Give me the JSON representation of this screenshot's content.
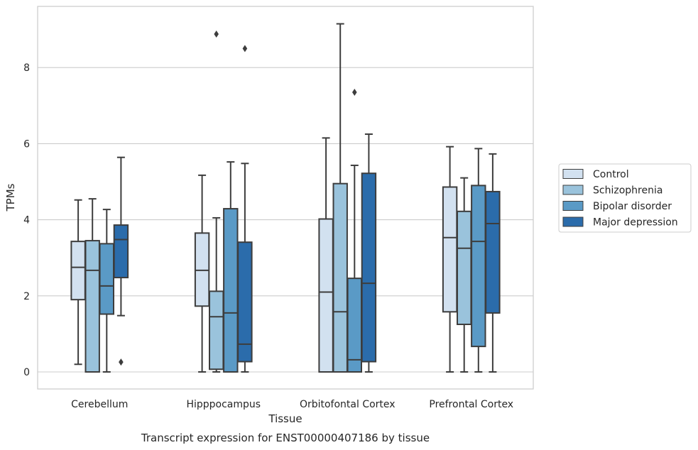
{
  "chart_data": {
    "type": "box",
    "title": "",
    "caption": "Transcript expression for ENST00000407186 by tissue",
    "xlabel": "Tissue",
    "ylabel": "TPMs",
    "ylim": [
      -0.4,
      9.6
    ],
    "yticks": [
      0,
      2,
      4,
      6,
      8
    ],
    "grid": "horizontal",
    "legend_position": "right",
    "categories": [
      "Cerebellum",
      "Hipppocampus",
      "Orbitofontal Cortex",
      "Prefrontal Cortex"
    ],
    "series": [
      {
        "name": "Control",
        "color": "#d2e1f0",
        "boxes": [
          {
            "whislo": 0.2,
            "q1": 1.9,
            "med": 2.75,
            "q3": 3.43,
            "whishi": 4.52,
            "fliers": []
          },
          {
            "whislo": 0.0,
            "q1": 1.73,
            "med": 2.67,
            "q3": 3.65,
            "whishi": 5.17,
            "fliers": []
          },
          {
            "whislo": 0.0,
            "q1": 0.0,
            "med": 2.1,
            "q3": 4.02,
            "whishi": 6.15,
            "fliers": []
          },
          {
            "whislo": 0.0,
            "q1": 1.58,
            "med": 3.53,
            "q3": 4.86,
            "whishi": 5.92,
            "fliers": []
          }
        ]
      },
      {
        "name": "Schizophrenia",
        "color": "#9ac3dc",
        "boxes": [
          {
            "whislo": 0.0,
            "q1": 0.0,
            "med": 2.67,
            "q3": 3.45,
            "whishi": 4.55,
            "fliers": []
          },
          {
            "whislo": 0.0,
            "q1": 0.07,
            "med": 1.45,
            "q3": 2.12,
            "whishi": 4.05,
            "fliers": [
              8.88
            ]
          },
          {
            "whislo": 0.0,
            "q1": 0.0,
            "med": 1.58,
            "q3": 4.95,
            "whishi": 9.15,
            "fliers": []
          },
          {
            "whislo": 0.0,
            "q1": 1.25,
            "med": 3.25,
            "q3": 4.22,
            "whishi": 5.1,
            "fliers": []
          }
        ]
      },
      {
        "name": "Bipolar disorder",
        "color": "#5a9ac6",
        "boxes": [
          {
            "whislo": 0.0,
            "q1": 1.52,
            "med": 2.26,
            "q3": 3.37,
            "whishi": 4.27,
            "fliers": []
          },
          {
            "whislo": 0.0,
            "q1": 0.0,
            "med": 1.55,
            "q3": 4.29,
            "whishi": 5.52,
            "fliers": []
          },
          {
            "whislo": 0.0,
            "q1": 0.0,
            "med": 0.32,
            "q3": 2.46,
            "whishi": 5.43,
            "fliers": [
              7.35
            ]
          },
          {
            "whislo": 0.0,
            "q1": 0.67,
            "med": 3.43,
            "q3": 4.9,
            "whishi": 5.87,
            "fliers": []
          }
        ]
      },
      {
        "name": "Major depression",
        "color": "#2b6cab",
        "boxes": [
          {
            "whislo": 1.48,
            "q1": 2.48,
            "med": 3.48,
            "q3": 3.86,
            "whishi": 5.64,
            "fliers": [
              0.26
            ]
          },
          {
            "whislo": 0.0,
            "q1": 0.27,
            "med": 0.73,
            "q3": 3.41,
            "whishi": 5.48,
            "fliers": [
              8.5
            ]
          },
          {
            "whislo": 0.0,
            "q1": 0.27,
            "med": 2.33,
            "q3": 5.22,
            "whishi": 6.25,
            "fliers": []
          },
          {
            "whislo": 0.0,
            "q1": 1.55,
            "med": 3.9,
            "q3": 4.74,
            "whishi": 5.73,
            "fliers": []
          }
        ]
      }
    ]
  }
}
